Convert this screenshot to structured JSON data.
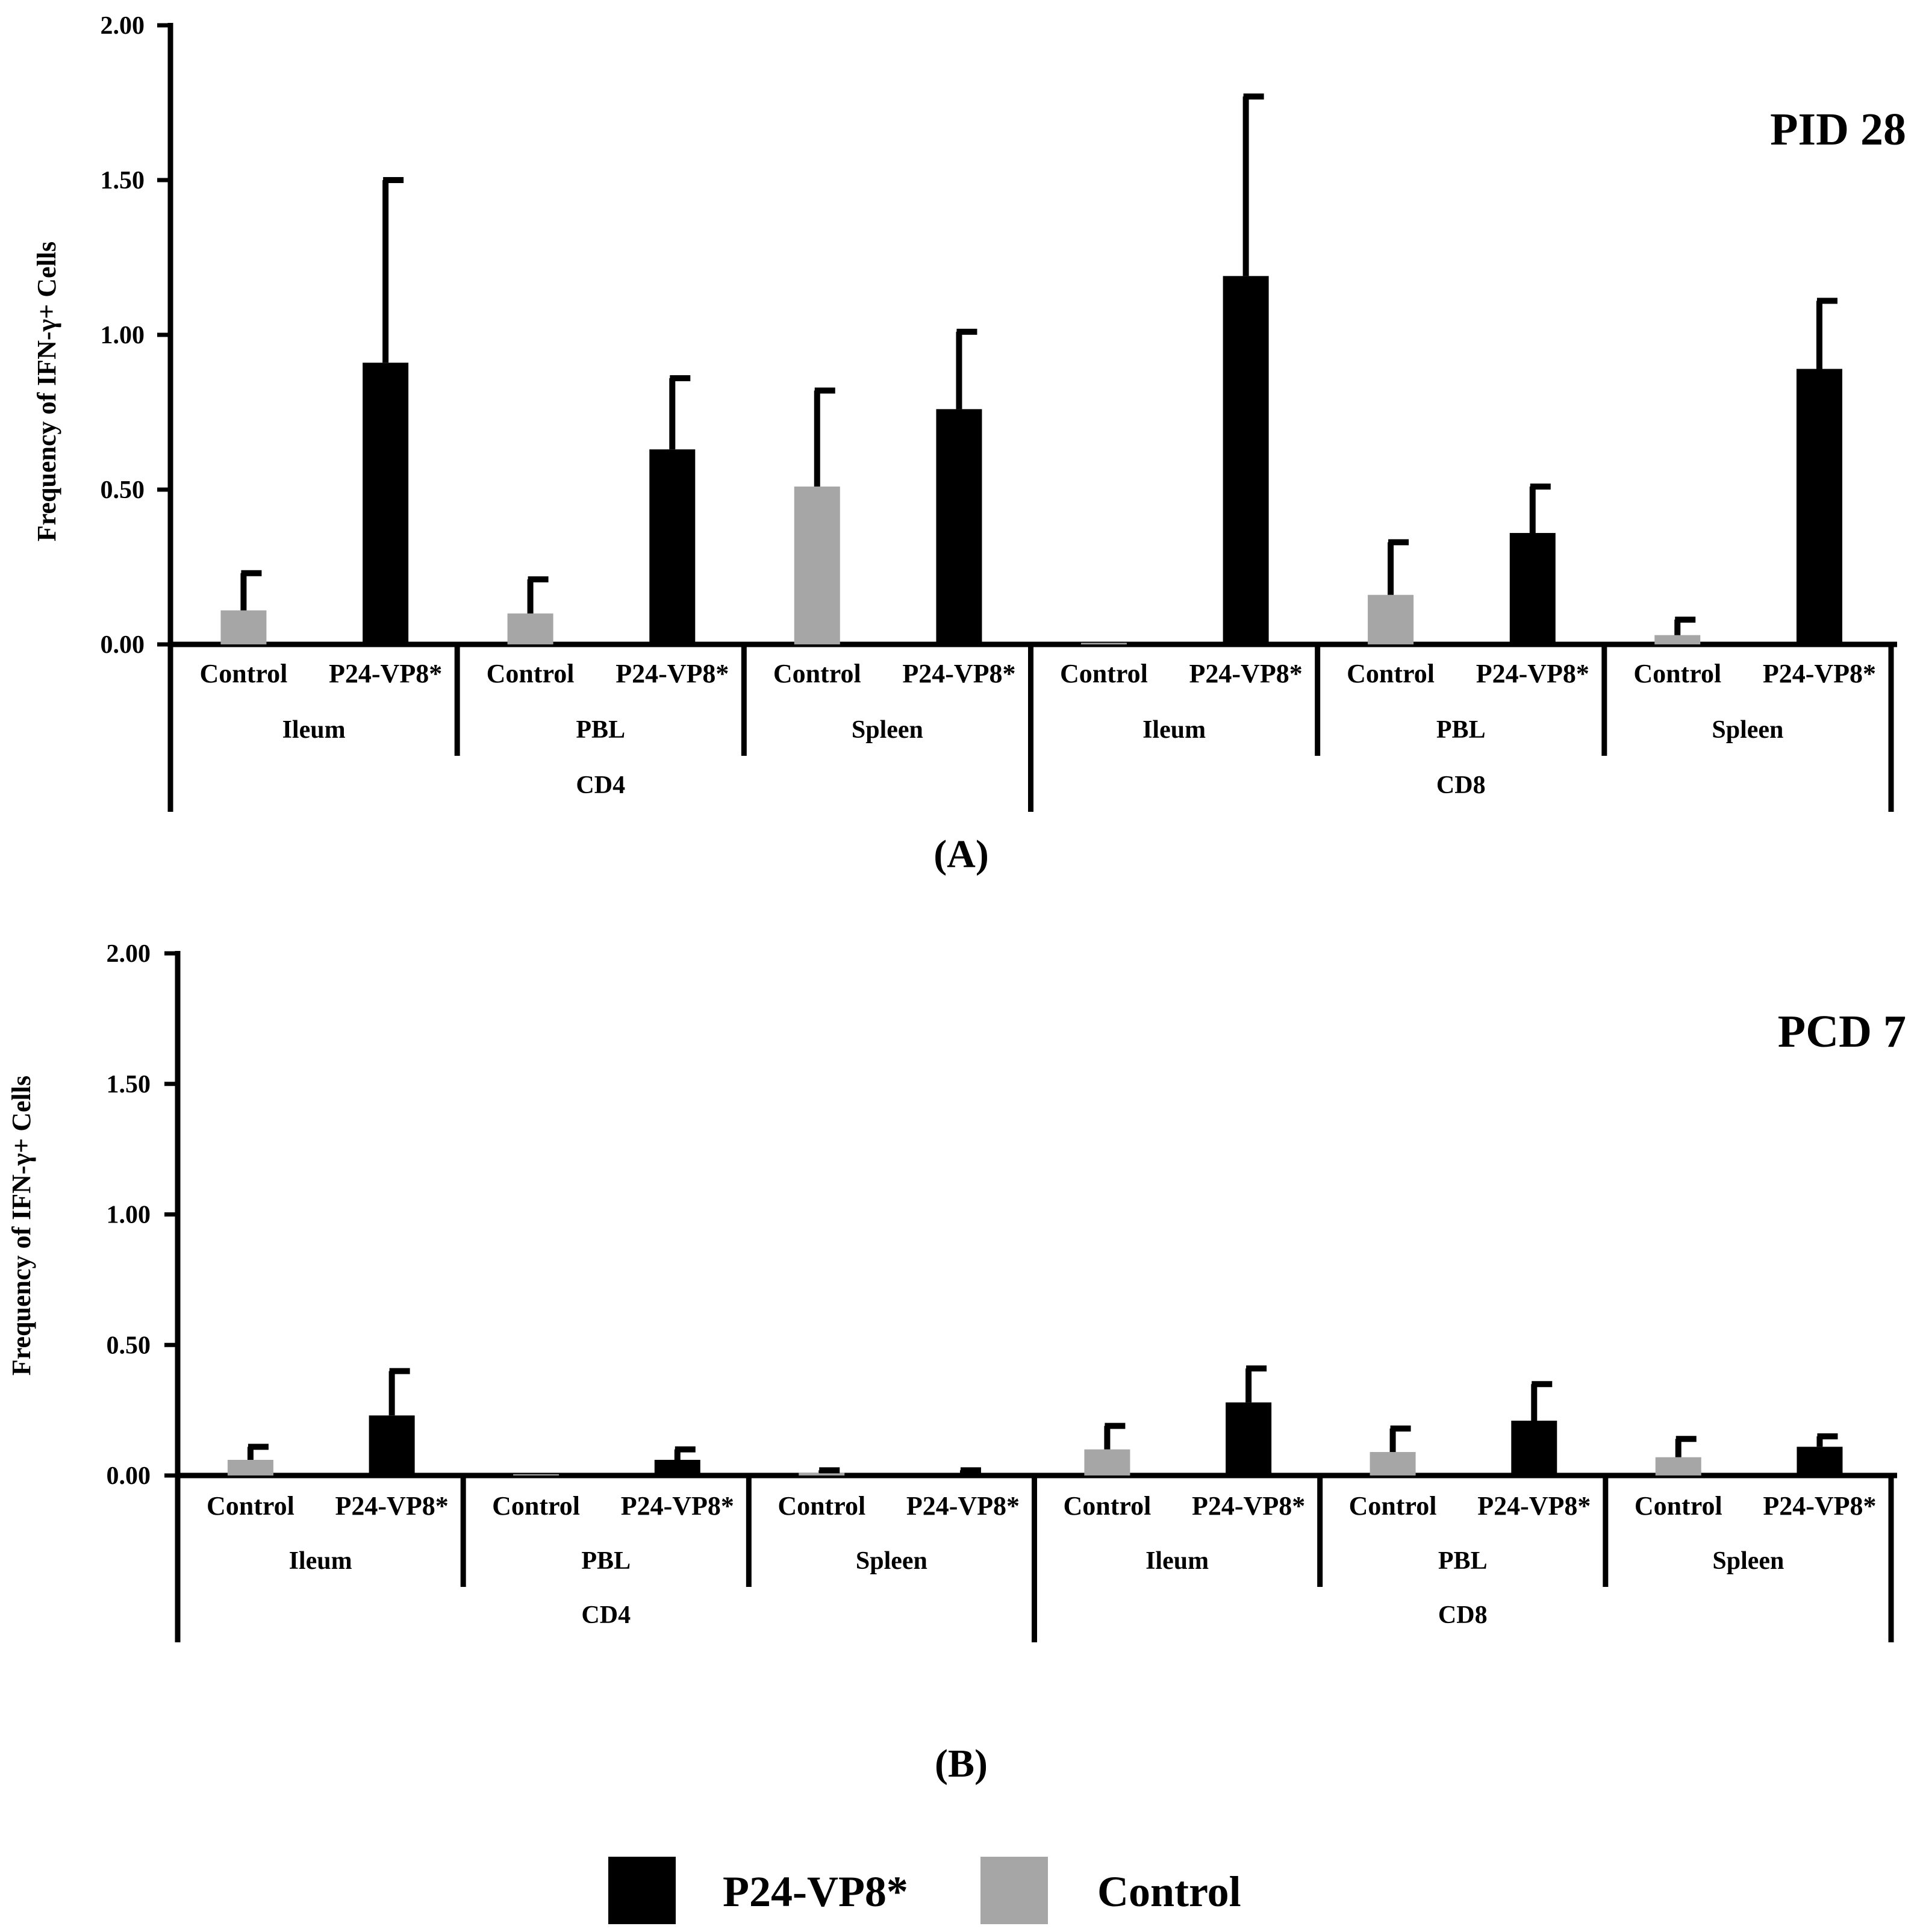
{
  "chart_data": [
    {
      "type": "bar",
      "title": "PID 28",
      "panel_label": "(A)",
      "ylabel": "Frequency of IFN-γ+ Cells",
      "ylim": [
        0,
        2
      ],
      "yticks": [
        0,
        0.5,
        1,
        1.5,
        2
      ],
      "ytick_labels": [
        "0.00",
        "0.50",
        "1.00",
        "1.50",
        "2.00"
      ],
      "groups": [
        "CD4",
        "CD8"
      ],
      "tissues": [
        "Ileum",
        "PBL",
        "Spleen",
        "Ileum",
        "PBL",
        "Spleen"
      ],
      "series": [
        {
          "name": "Control",
          "values": [
            0.11,
            0.1,
            0.51,
            0.005,
            0.16,
            0.03
          ],
          "errors": [
            0.12,
            0.11,
            0.31,
            0.0,
            0.17,
            0.05
          ]
        },
        {
          "name": "P24-VP8*",
          "values": [
            0.91,
            0.63,
            0.76,
            1.19,
            0.36,
            0.89
          ],
          "errors": [
            0.59,
            0.23,
            0.25,
            0.58,
            0.15,
            0.22
          ]
        }
      ]
    },
    {
      "type": "bar",
      "title": "PCD 7",
      "panel_label": "(B)",
      "ylabel": "Frequency of IFN-γ+ Cells",
      "ylim": [
        0,
        2
      ],
      "yticks": [
        0,
        0.5,
        1,
        1.5,
        2
      ],
      "ytick_labels": [
        "0.00",
        "0.50",
        "1.00",
        "1.50",
        "2.00"
      ],
      "groups": [
        "CD4",
        "CD8"
      ],
      "tissues": [
        "Ileum",
        "PBL",
        "Spleen",
        "Ileum",
        "PBL",
        "Spleen"
      ],
      "series": [
        {
          "name": "Control",
          "values": [
            0.06,
            0.005,
            0.01,
            0.1,
            0.09,
            0.07
          ],
          "errors": [
            0.05,
            0.0,
            0.01,
            0.09,
            0.09,
            0.07
          ]
        },
        {
          "name": "P24-VP8*",
          "values": [
            0.23,
            0.06,
            0.01,
            0.28,
            0.21,
            0.11
          ],
          "errors": [
            0.17,
            0.04,
            0.01,
            0.13,
            0.14,
            0.04
          ]
        }
      ]
    }
  ],
  "legend": [
    {
      "label": "P24-VP8*",
      "color": "#000000"
    },
    {
      "label": "Control",
      "color": "#a6a6a6"
    }
  ],
  "colors": {
    "control": "#a6a6a6",
    "treatment": "#000000"
  }
}
